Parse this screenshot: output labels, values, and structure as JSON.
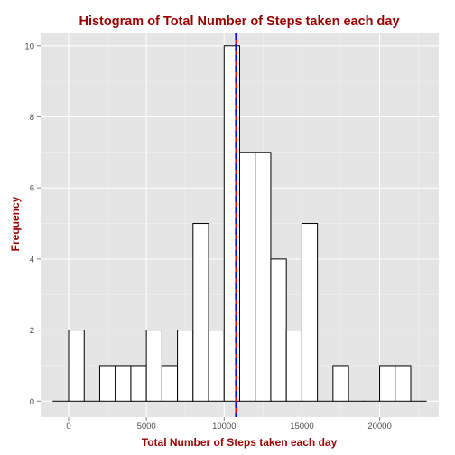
{
  "chart_data": {
    "type": "bar",
    "title": "Histogram of Total Number of Steps taken each day",
    "xlabel": "Total Number of Steps taken each day",
    "ylabel": "Frequency",
    "xlim": [
      -1800,
      23800
    ],
    "ylim": [
      -0.45,
      10.35
    ],
    "grid": true,
    "legend": "none",
    "x_ticks": [
      0,
      5000,
      10000,
      15000,
      20000
    ],
    "x_tick_labels": [
      "0",
      "5000",
      "10000",
      "15000",
      "20000"
    ],
    "y_ticks": [
      0,
      2,
      4,
      6,
      8,
      10
    ],
    "y_tick_labels": [
      "0",
      "2",
      "4",
      "6",
      "8",
      "10"
    ],
    "bins": {
      "start": -1000,
      "width": 1000,
      "counts": [
        0,
        2,
        0,
        1,
        1,
        1,
        2,
        1,
        2,
        5,
        2,
        10,
        7,
        7,
        4,
        2,
        5,
        0,
        1,
        0,
        0,
        1,
        1,
        0
      ]
    },
    "reference_lines": [
      {
        "value": 10766.19,
        "color": "#ff0000",
        "style": "solid"
      },
      {
        "value": 10765,
        "color": "#0000ff",
        "style": "dashed"
      }
    ],
    "colors": {
      "panel_background": "#e5e5e5",
      "grid_major": "#ffffff",
      "grid_minor": "#f2f2f2",
      "bar_fill": "#ffffff",
      "bar_outline": "#000000",
      "title_color": "#990000",
      "tick_label_color": "#4d4d4d"
    }
  }
}
